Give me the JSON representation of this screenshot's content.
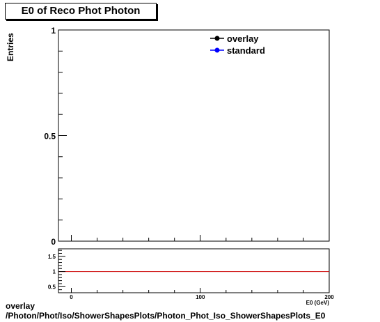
{
  "title": "E0 of Reco Phot Photon",
  "ylabel": "Entries",
  "xlabel": "E0 (GeV)",
  "footer": {
    "line1": "overlay",
    "line2": "/Photon/Phot/Iso/ShowerShapesPlots/Photon_Phot_Iso_ShowerShapesPlots_E0"
  },
  "colors": {
    "overlay": "#000000",
    "standard": "#0000ff",
    "ratio_line": "#cc0000"
  },
  "chart_data": [
    {
      "type": "line",
      "title": "E0 of Reco Phot Photon",
      "ylabel": "Entries",
      "xlim": [
        -10,
        200
      ],
      "ylim": [
        0,
        1
      ],
      "yticks": [
        {
          "value": 0,
          "label": "0"
        },
        {
          "value": 0.5,
          "label": "0.5"
        },
        {
          "value": 1,
          "label": "1"
        }
      ],
      "legend": [
        {
          "name": "overlay",
          "color": "#000000"
        },
        {
          "name": "standard",
          "color": "#0000ff"
        }
      ],
      "legend_position": "top-right",
      "series": [
        {
          "name": "overlay",
          "values": []
        },
        {
          "name": "standard",
          "values": []
        }
      ]
    },
    {
      "type": "line",
      "xlabel": "E0 (GeV)",
      "xlim": [
        -10,
        200
      ],
      "ylim": [
        0.3,
        1.75
      ],
      "xticks": [
        {
          "value": 0,
          "label": "0"
        },
        {
          "value": 100,
          "label": "100"
        },
        {
          "value": 200,
          "label": "200"
        }
      ],
      "yticks": [
        {
          "value": 0.5,
          "label": "0.5"
        },
        {
          "value": 1,
          "label": "1"
        },
        {
          "value": 1.5,
          "label": "1.5"
        }
      ],
      "reference_line": 1
    }
  ]
}
